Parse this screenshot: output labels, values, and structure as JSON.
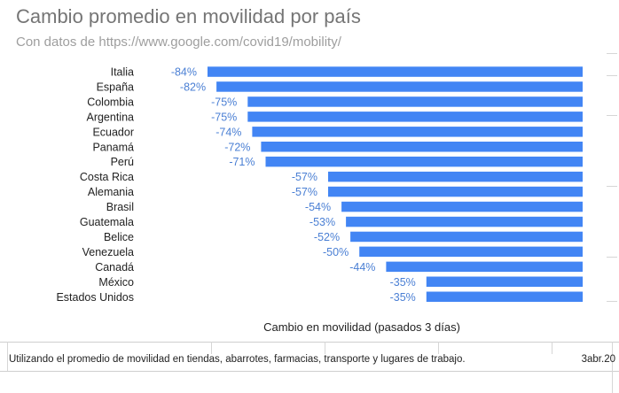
{
  "chart_data": {
    "type": "bar",
    "orientation": "horizontal",
    "title": "Cambio promedio en movilidad por país",
    "subtitle": "Con datos de https://www.google.com/covid19/mobility/",
    "xlabel": "Cambio en movilidad (pasados 3 días)",
    "ylabel": "",
    "xlim": [
      -84,
      0
    ],
    "categories": [
      "Italia",
      "España",
      "Colombia",
      "Argentina",
      "Ecuador",
      "Panamá",
      "Perú",
      "Costa Rica",
      "Alemania",
      "Brasil",
      "Guatemala",
      "Belice",
      "Venezuela",
      "Canadá",
      "México",
      "Estados Unidos"
    ],
    "values": [
      -84,
      -82,
      -75,
      -75,
      -74,
      -72,
      -71,
      -57,
      -57,
      -54,
      -53,
      -52,
      -50,
      -44,
      -35,
      -35
    ],
    "data_labels": [
      "-84%",
      "-82%",
      "-75%",
      "-75%",
      "-74%",
      "-72%",
      "-71%",
      "-57%",
      "-57%",
      "-54%",
      "-53%",
      "-52%",
      "-50%",
      "-44%",
      "-35%",
      "-35%"
    ],
    "bar_color": "#4285f4",
    "label_color": "#4a7fd4",
    "grid": false
  },
  "footer": {
    "note": "Utilizando el promedio de movilidad en tiendas, abarrotes, farmacias, transporte y lugares de trabajo.",
    "date": "3abr.20"
  }
}
